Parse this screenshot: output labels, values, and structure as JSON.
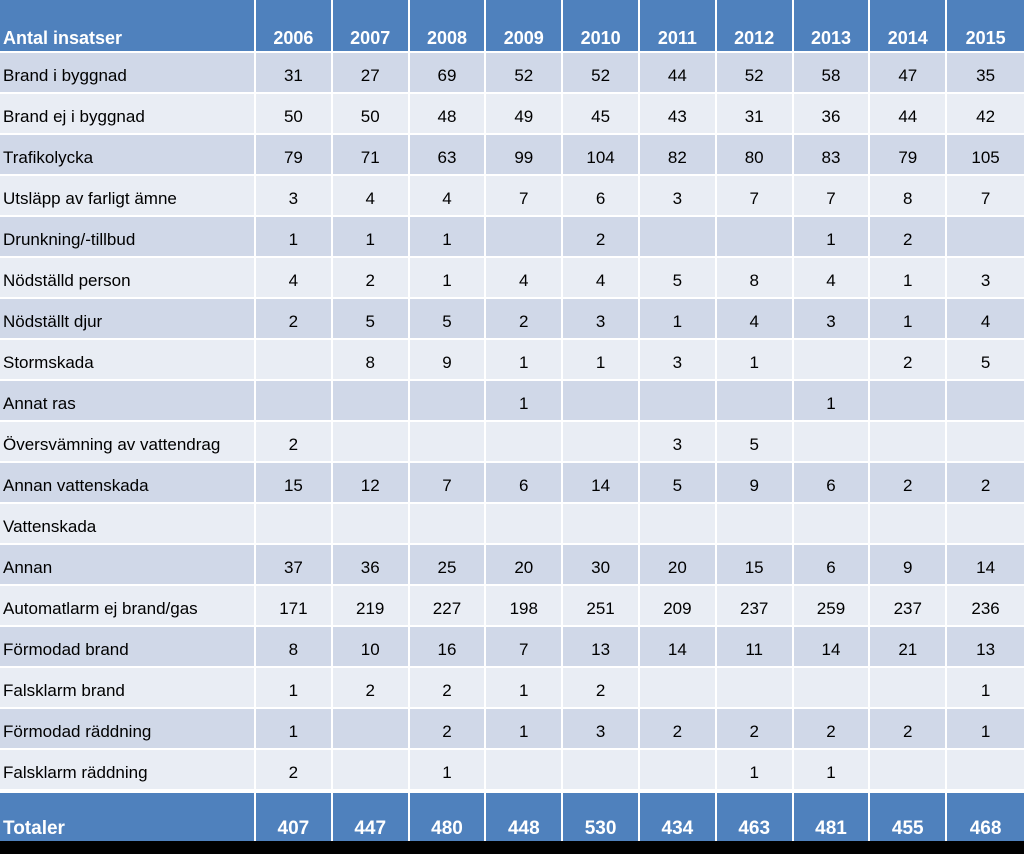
{
  "table": {
    "header_label": "Antal insatser",
    "years": [
      "2006",
      "2007",
      "2008",
      "2009",
      "2010",
      "2011",
      "2012",
      "2013",
      "2014",
      "2015"
    ],
    "rows": [
      {
        "label": "Brand i byggnad",
        "values": [
          "31",
          "27",
          "69",
          "52",
          "52",
          "44",
          "52",
          "58",
          "47",
          "35"
        ]
      },
      {
        "label": "Brand ej i byggnad",
        "values": [
          "50",
          "50",
          "48",
          "49",
          "45",
          "43",
          "31",
          "36",
          "44",
          "42"
        ]
      },
      {
        "label": "Trafikolycka",
        "values": [
          "79",
          "71",
          "63",
          "99",
          "104",
          "82",
          "80",
          "83",
          "79",
          "105"
        ]
      },
      {
        "label": "Utsläpp av farligt ämne",
        "values": [
          "3",
          "4",
          "4",
          "7",
          "6",
          "3",
          "7",
          "7",
          "8",
          "7"
        ]
      },
      {
        "label": "Drunkning/-tillbud",
        "values": [
          "1",
          "1",
          "1",
          "",
          "2",
          "",
          "",
          "1",
          "2",
          ""
        ]
      },
      {
        "label": "Nödställd person",
        "values": [
          "4",
          "2",
          "1",
          "4",
          "4",
          "5",
          "8",
          "4",
          "1",
          "3"
        ]
      },
      {
        "label": "Nödställt djur",
        "values": [
          "2",
          "5",
          "5",
          "2",
          "3",
          "1",
          "4",
          "3",
          "1",
          "4"
        ]
      },
      {
        "label": "Stormskada",
        "values": [
          "",
          "8",
          "9",
          "1",
          "1",
          "3",
          "1",
          "",
          "2",
          "5"
        ]
      },
      {
        "label": "Annat ras",
        "values": [
          "",
          "",
          "",
          "1",
          "",
          "",
          "",
          "1",
          "",
          ""
        ]
      },
      {
        "label": "Översvämning  av vattendrag",
        "values": [
          "2",
          "",
          "",
          "",
          "",
          "3",
          "5",
          "",
          "",
          ""
        ]
      },
      {
        "label": "Annan vattenskada",
        "values": [
          "15",
          "12",
          "7",
          "6",
          "14",
          "5",
          "9",
          "6",
          "2",
          "2"
        ]
      },
      {
        "label": "Vattenskada",
        "values": [
          "",
          "",
          "",
          "",
          "",
          "",
          "",
          "",
          "",
          ""
        ]
      },
      {
        "label": "Annan",
        "values": [
          "37",
          "36",
          "25",
          "20",
          "30",
          "20",
          "15",
          "6",
          "9",
          "14"
        ]
      },
      {
        "label": "Automatlarm ej brand/gas",
        "values": [
          "171",
          "219",
          "227",
          "198",
          "251",
          "209",
          "237",
          "259",
          "237",
          "236"
        ]
      },
      {
        "label": "Förmodad brand",
        "values": [
          "8",
          "10",
          "16",
          "7",
          "13",
          "14",
          "11",
          "14",
          "21",
          "13"
        ]
      },
      {
        "label": "Falsklarm brand",
        "values": [
          "1",
          "2",
          "2",
          "1",
          "2",
          "",
          "",
          "",
          "",
          "1"
        ]
      },
      {
        "label": "Förmodad räddning",
        "values": [
          "1",
          "",
          "2",
          "1",
          "3",
          "2",
          "2",
          "2",
          "2",
          "1"
        ]
      },
      {
        "label": "Falsklarm räddning",
        "values": [
          "2",
          "",
          "1",
          "",
          "",
          "",
          "1",
          "1",
          "",
          ""
        ]
      }
    ],
    "totals": {
      "label": "Totaler",
      "values": [
        "407",
        "447",
        "480",
        "448",
        "530",
        "434",
        "463",
        "481",
        "455",
        "468"
      ]
    }
  },
  "colors": {
    "header_bg": "#4f81bd",
    "row_band_dark": "#d0d8e8",
    "row_band_light": "#e9edf4",
    "background": "#000000"
  }
}
